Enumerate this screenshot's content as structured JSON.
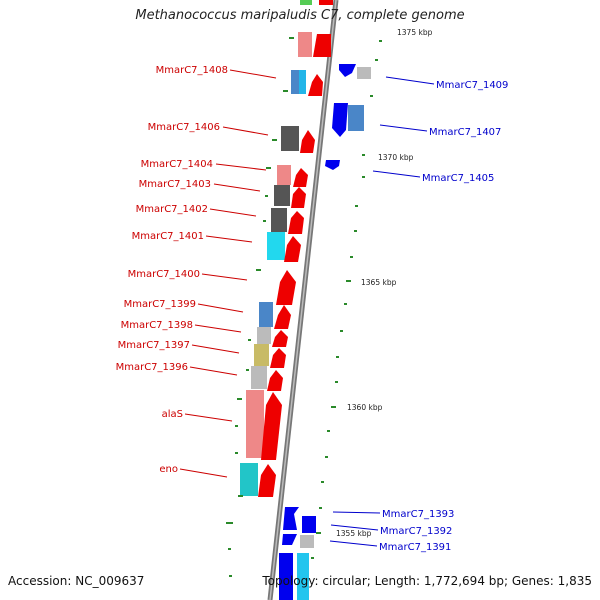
{
  "header": {
    "title": "Methanococcus maripaludis C7, complete genome"
  },
  "footer": {
    "accession": "Accession: NC_009637",
    "topology": "Topology: circular; Length: 1,772,694 bp; Genes: 1,835"
  },
  "colors": {
    "left_label": "#cc0000",
    "right_label": "#0000cc",
    "tick": "#2a8a2a",
    "backbone": "#777777"
  },
  "genes_left": [
    {
      "name": "MmarC7_1408"
    },
    {
      "name": "MmarC7_1406"
    },
    {
      "name": "MmarC7_1404"
    },
    {
      "name": "MmarC7_1403"
    },
    {
      "name": "MmarC7_1402"
    },
    {
      "name": "MmarC7_1401"
    },
    {
      "name": "MmarC7_1400"
    },
    {
      "name": "MmarC7_1399"
    },
    {
      "name": "MmarC7_1398"
    },
    {
      "name": "MmarC7_1397"
    },
    {
      "name": "MmarC7_1396"
    },
    {
      "name": "alaS"
    },
    {
      "name": "eno"
    }
  ],
  "genes_right": [
    {
      "name": "MmarC7_1409"
    },
    {
      "name": "MmarC7_1407"
    },
    {
      "name": "MmarC7_1405"
    },
    {
      "name": "MmarC7_1393"
    },
    {
      "name": "MmarC7_1392"
    },
    {
      "name": "MmarC7_1391"
    }
  ],
  "scale_ticks": [
    "1375 kbp",
    "1370 kbp",
    "1365 kbp",
    "1360 kbp",
    "1355 kbp"
  ]
}
